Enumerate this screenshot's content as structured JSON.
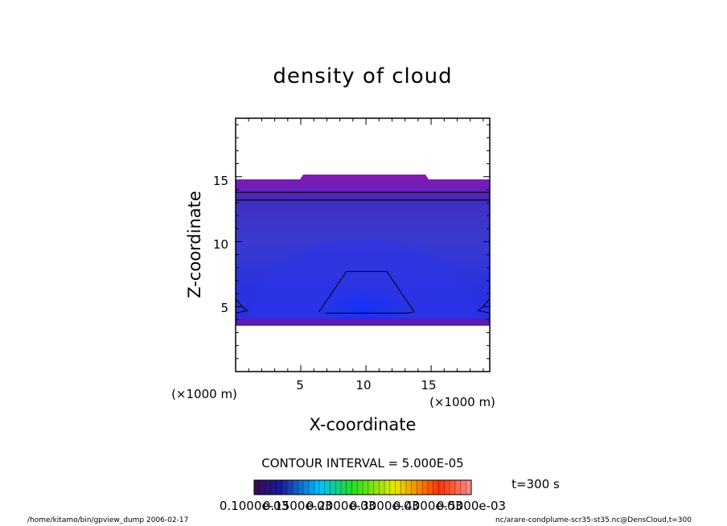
{
  "chart_data": {
    "type": "heatmap",
    "title": "density of cloud",
    "xlabel": "X-coordinate",
    "ylabel": "Z-coordinate",
    "x_unit": "(×1000 m)",
    "y_unit": "(×1000 m)",
    "xlim": [
      0,
      19.5
    ],
    "ylim": [
      0,
      19.5
    ],
    "x_ticks": [
      5,
      10,
      15
    ],
    "y_ticks": [
      5,
      10,
      15
    ],
    "x_tick_labels": [
      "5",
      "10",
      "15"
    ],
    "y_tick_labels": [
      "5",
      "10",
      "15"
    ],
    "contour_interval_label": "CONTOUR INTERVAL = 5.000E-05",
    "time_label": "t=300 s",
    "colorbar": {
      "range": [
        0.0001,
        0.0006
      ],
      "levels": 40,
      "label_text": "0.1000e-03",
      "overlapping_labels": [
        "0.1000e-03",
        "0.1500e-03",
        "0.2000e-03",
        "0.3000e-03",
        "0.4000e-03",
        "0.5000e-03"
      ],
      "colors": [
        "#3a0a4e",
        "#1a1aa0",
        "#00bfff",
        "#22dd22",
        "#e8e800",
        "#ff3300",
        "#ff9090"
      ]
    },
    "cloud_layer": {
      "bottom_z": 3.6,
      "top_z": 15.0,
      "top_z_center": 15.4,
      "fill_colors": [
        "#7b1fa8",
        "#5a18b8",
        "#3a2fd0",
        "#2f3de0",
        "#1f30f0"
      ]
    },
    "contours": [
      {
        "name": "core-center",
        "x": [
          6.4,
          8.5,
          11.6,
          13.7,
          13.2,
          6.9
        ],
        "z": [
          4.6,
          7.7,
          7.7,
          4.6,
          4.5,
          4.5
        ]
      },
      {
        "name": "core-left",
        "x": [
          0.0,
          0.6,
          0.9,
          0.0
        ],
        "z": [
          5.6,
          4.9,
          4.7,
          4.5
        ]
      },
      {
        "name": "core-right",
        "x": [
          19.5,
          18.9,
          18.6,
          19.5
        ],
        "z": [
          5.6,
          4.9,
          4.7,
          4.5
        ]
      },
      {
        "name": "upper-line-1",
        "x": [
          0,
          19.5
        ],
        "z": [
          13.8,
          13.8
        ]
      },
      {
        "name": "upper-line-2",
        "x": [
          0,
          19.5
        ],
        "z": [
          13.2,
          13.2
        ]
      }
    ]
  },
  "footer": {
    "left": "/home/kitamo/bin/gpview_dump  2006-02-17",
    "right": "nc/arare-condplume-scr35-st35.nc@DensCloud,t=300"
  }
}
